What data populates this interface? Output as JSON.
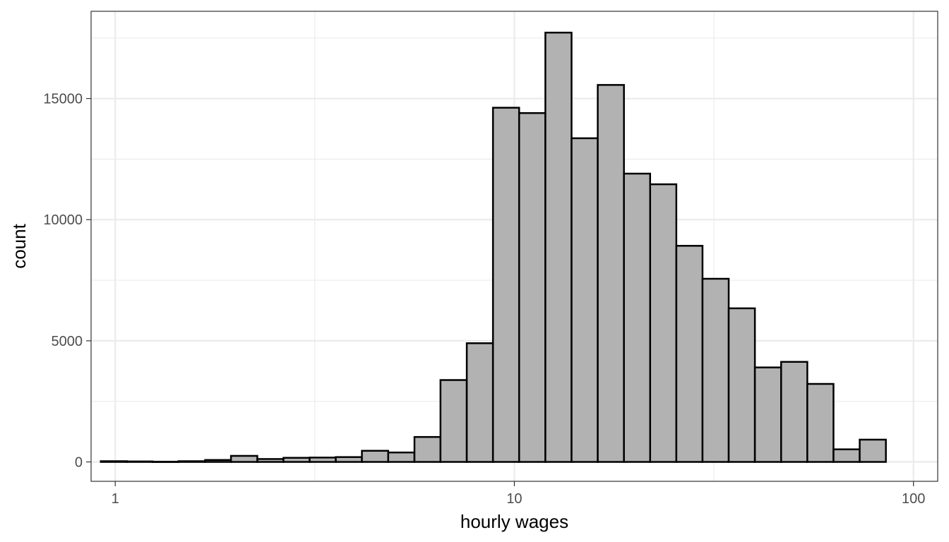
{
  "chart_data": {
    "type": "bar",
    "xlabel": "hourly wages",
    "ylabel": "count",
    "x_scale": "log10",
    "xlim": [
      0.87,
      115
    ],
    "ylim": [
      -800,
      18600
    ],
    "x_ticks": [
      {
        "value": 1,
        "label": "1"
      },
      {
        "value": 10,
        "label": "10"
      },
      {
        "value": 100,
        "label": "100"
      }
    ],
    "y_ticks": [
      {
        "value": 0,
        "label": "0"
      },
      {
        "value": 5000,
        "label": "5000"
      },
      {
        "value": 10000,
        "label": "10000"
      },
      {
        "value": 15000,
        "label": "15000"
      }
    ],
    "grid": true,
    "bins": [
      {
        "x0": 0.92,
        "x1": 1.07,
        "count": 30
      },
      {
        "x0": 1.07,
        "x1": 1.24,
        "count": 20
      },
      {
        "x0": 1.24,
        "x1": 1.44,
        "count": 10
      },
      {
        "x0": 1.44,
        "x1": 1.68,
        "count": 30
      },
      {
        "x0": 1.68,
        "x1": 1.95,
        "count": 80
      },
      {
        "x0": 1.95,
        "x1": 2.27,
        "count": 250
      },
      {
        "x0": 2.27,
        "x1": 2.64,
        "count": 120
      },
      {
        "x0": 2.64,
        "x1": 3.07,
        "count": 170
      },
      {
        "x0": 3.07,
        "x1": 3.57,
        "count": 180
      },
      {
        "x0": 3.57,
        "x1": 4.15,
        "count": 200
      },
      {
        "x0": 4.15,
        "x1": 4.83,
        "count": 460
      },
      {
        "x0": 4.83,
        "x1": 5.62,
        "count": 390
      },
      {
        "x0": 5.62,
        "x1": 6.53,
        "count": 1030
      },
      {
        "x0": 6.53,
        "x1": 7.6,
        "count": 3380
      },
      {
        "x0": 7.6,
        "x1": 8.84,
        "count": 4900
      },
      {
        "x0": 8.84,
        "x1": 10.28,
        "count": 14620
      },
      {
        "x0": 10.28,
        "x1": 11.96,
        "count": 14400
      },
      {
        "x0": 11.96,
        "x1": 13.91,
        "count": 17720
      },
      {
        "x0": 13.91,
        "x1": 16.18,
        "count": 13360
      },
      {
        "x0": 16.18,
        "x1": 18.82,
        "count": 15560
      },
      {
        "x0": 18.82,
        "x1": 21.89,
        "count": 11900
      },
      {
        "x0": 21.89,
        "x1": 25.46,
        "count": 11460
      },
      {
        "x0": 25.46,
        "x1": 29.61,
        "count": 8920
      },
      {
        "x0": 29.61,
        "x1": 34.44,
        "count": 7560
      },
      {
        "x0": 34.44,
        "x1": 40.06,
        "count": 6340
      },
      {
        "x0": 40.06,
        "x1": 46.6,
        "count": 3900
      },
      {
        "x0": 46.6,
        "x1": 54.2,
        "count": 4130
      },
      {
        "x0": 54.2,
        "x1": 63.04,
        "count": 3220
      },
      {
        "x0": 63.04,
        "x1": 73.33,
        "count": 520
      },
      {
        "x0": 73.33,
        "x1": 85.29,
        "count": 920
      }
    ]
  }
}
